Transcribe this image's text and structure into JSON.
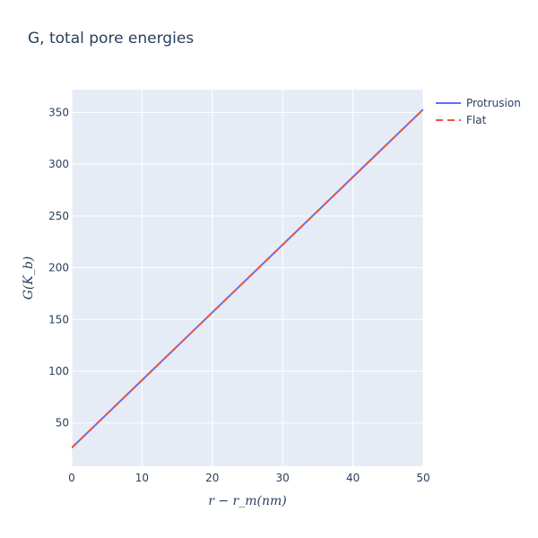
{
  "chart_data": {
    "type": "line",
    "title": "G, total pore energies",
    "xlabel": "r − r_m(nm)",
    "ylabel": "G(K_b)",
    "xlim": [
      0,
      50
    ],
    "ylim": [
      8.2,
      372
    ],
    "xticks": [
      0,
      10,
      20,
      30,
      40,
      50
    ],
    "yticks": [
      50,
      100,
      150,
      200,
      250,
      300,
      350
    ],
    "grid": true,
    "legend_position": "top-right outside",
    "series": [
      {
        "name": "Protrusion",
        "style": "solid",
        "color": "#636efa",
        "x": [
          0,
          50
        ],
        "y": [
          26,
          353
        ]
      },
      {
        "name": "Flat",
        "style": "dash",
        "color": "#ef553b",
        "x": [
          0,
          50
        ],
        "y": [
          26,
          353
        ]
      }
    ]
  }
}
